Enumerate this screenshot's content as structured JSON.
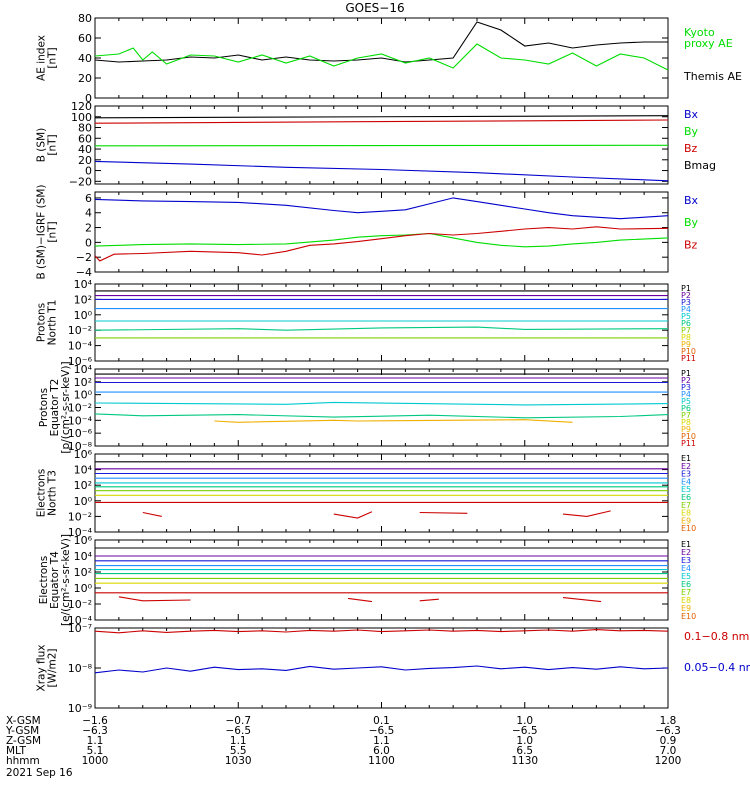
{
  "title": "GOES−16",
  "date": "2021 Sep 16",
  "ephemeris": {
    "row_labels": [
      "X-GSM",
      "Y-GSM",
      "Z-GSM",
      "MLT",
      "hhmm"
    ],
    "columns": [
      [
        "−1.6",
        "−6.3",
        "1.1",
        "5.1",
        "1000"
      ],
      [
        "−0.7",
        "−6.5",
        "1.1",
        "5.5",
        "1030"
      ],
      [
        "0.1",
        "−6.5",
        "1.1",
        "6.0",
        "1100"
      ],
      [
        "1.0",
        "−6.5",
        "1.0",
        "6.5",
        "1130"
      ],
      [
        "1.8",
        "−6.3",
        "0.9",
        "7.0",
        "1200"
      ]
    ]
  },
  "colors": {
    "black": "#000000",
    "green": "#00dd00",
    "blue": "#0000cc",
    "red": "#cc0000",
    "p_colors": [
      "#000000",
      "#6a00a0",
      "#1a1ad8",
      "#1e90ff",
      "#00c8d0",
      "#00c880",
      "#80d000",
      "#d8d800",
      "#f0b000",
      "#e06000",
      "#cc0000"
    ]
  },
  "chart_data": [
    {
      "type": "line",
      "ylabel": [
        "AE index",
        "[nT]"
      ],
      "ylim": [
        0,
        80
      ],
      "yticks": [
        "0",
        "20",
        "40",
        "60",
        "80"
      ],
      "legend": [
        {
          "label": "Kyoto",
          "color": "green"
        },
        {
          "label": "proxy AE",
          "color": "green"
        },
        {
          "label": "Themis AE",
          "color": "black"
        }
      ],
      "series": [
        {
          "color": "black",
          "x": [
            0,
            5,
            10,
            15,
            20,
            25,
            30,
            35,
            40,
            45,
            50,
            55,
            60,
            65,
            70,
            75,
            80,
            85,
            90,
            95,
            100,
            105,
            110,
            115,
            120
          ],
          "values": [
            38,
            36,
            37,
            38,
            41,
            40,
            43,
            38,
            41,
            38,
            37,
            38,
            40,
            36,
            38,
            40,
            76,
            68,
            52,
            55,
            50,
            53,
            55,
            56,
            56
          ]
        },
        {
          "color": "green",
          "x": [
            0,
            5,
            8,
            10,
            12,
            15,
            20,
            25,
            30,
            35,
            40,
            45,
            50,
            55,
            60,
            65,
            70,
            75,
            80,
            85,
            90,
            95,
            100,
            105,
            110,
            115,
            120
          ],
          "values": [
            42,
            44,
            50,
            38,
            46,
            34,
            43,
            42,
            36,
            43,
            35,
            42,
            32,
            40,
            44,
            35,
            40,
            30,
            54,
            40,
            38,
            34,
            45,
            32,
            44,
            40,
            28
          ]
        }
      ]
    },
    {
      "type": "line",
      "ylabel": [
        "B (SM)",
        "[nT]"
      ],
      "ylim": [
        -25,
        120
      ],
      "yticks": [
        "−20",
        "0",
        "20",
        "40",
        "60",
        "80",
        "100",
        "120"
      ],
      "legend": [
        {
          "label": "Bx",
          "color": "blue"
        },
        {
          "label": "By",
          "color": "green"
        },
        {
          "label": "Bz",
          "color": "red"
        },
        {
          "label": "Bmag",
          "color": "black"
        }
      ],
      "series": [
        {
          "color": "black",
          "x": [
            0,
            120
          ],
          "values": [
            98,
            102
          ]
        },
        {
          "color": "red",
          "x": [
            0,
            120
          ],
          "values": [
            88,
            94
          ]
        },
        {
          "color": "green",
          "x": [
            0,
            120
          ],
          "values": [
            46,
            47
          ]
        },
        {
          "color": "blue",
          "x": [
            0,
            20,
            40,
            60,
            80,
            100,
            120
          ],
          "values": [
            17,
            12,
            6,
            2,
            -4,
            -12,
            -19
          ]
        }
      ]
    },
    {
      "type": "line",
      "ylabel": [
        "B (SM)−IGRF (SM)",
        "[nT]"
      ],
      "ylim": [
        -4,
        6.8
      ],
      "yticks": [
        "−4",
        "−2",
        "0",
        "2",
        "4",
        "6"
      ],
      "legend": [
        {
          "label": "Bx",
          "color": "blue"
        },
        {
          "label": "By",
          "color": "green"
        },
        {
          "label": "Bz",
          "color": "red"
        }
      ],
      "series": [
        {
          "color": "blue",
          "x": [
            0,
            10,
            20,
            30,
            40,
            50,
            55,
            60,
            65,
            70,
            75,
            80,
            85,
            90,
            95,
            100,
            105,
            110,
            120
          ],
          "values": [
            5.8,
            5.6,
            5.5,
            5.4,
            5.0,
            4.3,
            4.0,
            4.2,
            4.4,
            5.2,
            6.0,
            5.5,
            5.0,
            4.5,
            4.0,
            3.6,
            3.4,
            3.2,
            3.6
          ]
        },
        {
          "color": "green",
          "x": [
            0,
            10,
            20,
            30,
            40,
            50,
            55,
            60,
            65,
            70,
            75,
            80,
            85,
            90,
            95,
            100,
            105,
            110,
            120
          ],
          "values": [
            -0.5,
            -0.3,
            -0.2,
            -0.3,
            -0.2,
            0.3,
            0.7,
            0.9,
            1.0,
            1.2,
            0.6,
            0.0,
            -0.4,
            -0.6,
            -0.5,
            -0.2,
            0.0,
            0.3,
            0.6
          ]
        },
        {
          "color": "red",
          "x": [
            0,
            1,
            4,
            10,
            20,
            30,
            35,
            40,
            45,
            50,
            55,
            60,
            65,
            70,
            75,
            80,
            85,
            90,
            95,
            100,
            105,
            110,
            120
          ],
          "values": [
            -1.8,
            -2.5,
            -1.6,
            -1.5,
            -1.2,
            -1.4,
            -1.7,
            -1.2,
            -0.4,
            -0.2,
            0.1,
            0.5,
            0.9,
            1.2,
            1.0,
            1.2,
            1.5,
            1.8,
            2.0,
            1.8,
            2.1,
            1.8,
            1.9
          ]
        }
      ]
    },
    {
      "type": "line",
      "log": true,
      "ylabel": [
        "Protons",
        "North T1"
      ],
      "ylim": [
        -6,
        4
      ],
      "yticks": [
        "10⁴",
        "10²",
        "10⁰",
        "10⁻²",
        "10⁻⁴",
        "10⁻⁶"
      ],
      "legend_labels": [
        "P1",
        "P2",
        "P3",
        "P4",
        "P5",
        "P6",
        "P7",
        "P8",
        "P9",
        "P10",
        "P11"
      ],
      "series": [
        {
          "cidx": 0,
          "x": [
            0,
            120
          ],
          "values": [
            3.1,
            3.1
          ]
        },
        {
          "cidx": 1,
          "x": [
            0,
            120
          ],
          "values": [
            2.5,
            2.5
          ]
        },
        {
          "cidx": 2,
          "x": [
            0,
            120
          ],
          "values": [
            2.0,
            2.0
          ]
        },
        {
          "cidx": 3,
          "x": [
            0,
            120
          ],
          "values": [
            0.8,
            0.8
          ]
        },
        {
          "cidx": 4,
          "x": [
            0,
            120
          ],
          "values": [
            -0.8,
            -0.8
          ]
        },
        {
          "cidx": 5,
          "x": [
            0,
            30,
            40,
            60,
            80,
            90,
            120
          ],
          "values": [
            -2.0,
            -1.8,
            -2.0,
            -1.7,
            -1.6,
            -1.9,
            -1.8
          ]
        },
        {
          "cidx": 6,
          "x": [
            0,
            5,
            20,
            45,
            70,
            95,
            120
          ],
          "values": [
            -3.0,
            -3.0,
            -3.0,
            -3.0,
            -3.0,
            -3.0,
            -3.0
          ]
        }
      ]
    },
    {
      "type": "line",
      "log": true,
      "ylabel": [
        "Protons",
        "Equator T2",
        "[p/(cm²-s-sr-keV)]"
      ],
      "ylim": [
        -8,
        4
      ],
      "yticks": [
        "10⁴",
        "10²",
        "10⁰",
        "10⁻²",
        "10⁻⁴",
        "10⁻⁶",
        "10⁻⁸"
      ],
      "legend_labels": [
        "P1",
        "P2",
        "P3",
        "P4",
        "P5",
        "P6",
        "P7",
        "P8",
        "P9",
        "P10",
        "P11"
      ],
      "series": [
        {
          "cidx": 0,
          "x": [
            0,
            120
          ],
          "values": [
            3.2,
            3.2
          ]
        },
        {
          "cidx": 1,
          "x": [
            0,
            120
          ],
          "values": [
            2.6,
            2.6
          ]
        },
        {
          "cidx": 2,
          "x": [
            0,
            120
          ],
          "values": [
            1.9,
            1.9
          ]
        },
        {
          "cidx": 3,
          "x": [
            0,
            120
          ],
          "values": [
            0.4,
            0.4
          ]
        },
        {
          "cidx": 4,
          "x": [
            0,
            40,
            50,
            90,
            120
          ],
          "values": [
            -1.3,
            -1.5,
            -1.2,
            -1.6,
            -1.4
          ]
        },
        {
          "cidx": 5,
          "x": [
            0,
            10,
            30,
            50,
            70,
            90,
            110,
            120
          ],
          "values": [
            -3.0,
            -3.3,
            -3.1,
            -3.5,
            -3.2,
            -3.6,
            -3.4,
            -3.1
          ]
        },
        {
          "cidx": 8,
          "x": [
            25,
            30,
            50,
            55,
            90,
            100
          ],
          "values": [
            -4.1,
            -4.3,
            -4.0,
            -4.1,
            -3.9,
            -4.3
          ]
        }
      ]
    },
    {
      "type": "line",
      "log": true,
      "ylabel": [
        "Electrons",
        "North T3"
      ],
      "ylim": [
        -4,
        6
      ],
      "yticks": [
        "10⁶",
        "10⁴",
        "10²",
        "10⁰",
        "10⁻²",
        "10⁻⁴"
      ],
      "legend_labels": [
        "E1",
        "E2",
        "E3",
        "E4",
        "E5",
        "E6",
        "E7",
        "E8",
        "E9",
        "E10"
      ],
      "series": [
        {
          "cidx": 0,
          "x": [
            0,
            120
          ],
          "values": [
            5.0,
            5.0
          ]
        },
        {
          "cidx": 1,
          "x": [
            0,
            120
          ],
          "values": [
            4.1,
            4.1
          ]
        },
        {
          "cidx": 2,
          "x": [
            0,
            120
          ],
          "values": [
            3.5,
            3.5
          ]
        },
        {
          "cidx": 3,
          "x": [
            0,
            120
          ],
          "values": [
            2.9,
            2.9
          ]
        },
        {
          "cidx": 4,
          "x": [
            0,
            120
          ],
          "values": [
            2.3,
            2.3
          ]
        },
        {
          "cidx": 5,
          "x": [
            0,
            120
          ],
          "values": [
            1.8,
            1.8
          ]
        },
        {
          "cidx": 6,
          "x": [
            0,
            120
          ],
          "values": [
            1.3,
            1.3
          ]
        },
        {
          "cidx": 7,
          "x": [
            0,
            120
          ],
          "values": [
            0.7,
            0.7
          ]
        },
        {
          "cidx": 10,
          "x": [
            0,
            120
          ],
          "values": [
            -0.2,
            -0.2
          ]
        },
        {
          "cidx": 10,
          "x": [
            10,
            14
          ],
          "values": [
            -1.5,
            -2.0
          ]
        },
        {
          "cidx": 10,
          "x": [
            50,
            55,
            58
          ],
          "values": [
            -1.7,
            -2.2,
            -1.4
          ]
        },
        {
          "cidx": 10,
          "x": [
            68,
            78
          ],
          "values": [
            -1.5,
            -1.6
          ]
        },
        {
          "cidx": 10,
          "x": [
            98,
            103,
            108
          ],
          "values": [
            -1.7,
            -2.0,
            -1.3
          ]
        }
      ]
    },
    {
      "type": "line",
      "log": true,
      "ylabel": [
        "Electrons",
        "Equator T4",
        "[e/(cm²-s-sr-keV)]"
      ],
      "ylim": [
        -4,
        6
      ],
      "yticks": [
        "10⁶",
        "10⁴",
        "10²",
        "10⁰",
        "10⁻²",
        "10⁻⁴"
      ],
      "legend_labels": [
        "E1",
        "E2",
        "E3",
        "E4",
        "E5",
        "E6",
        "E7",
        "E8",
        "E9",
        "E10"
      ],
      "series": [
        {
          "cidx": 0,
          "x": [
            0,
            120
          ],
          "values": [
            5.0,
            5.0
          ]
        },
        {
          "cidx": 1,
          "x": [
            0,
            120
          ],
          "values": [
            4.0,
            4.0
          ]
        },
        {
          "cidx": 2,
          "x": [
            0,
            120
          ],
          "values": [
            3.4,
            3.4
          ]
        },
        {
          "cidx": 3,
          "x": [
            0,
            120
          ],
          "values": [
            2.8,
            2.8
          ]
        },
        {
          "cidx": 4,
          "x": [
            0,
            120
          ],
          "values": [
            2.3,
            2.3
          ]
        },
        {
          "cidx": 5,
          "x": [
            0,
            120
          ],
          "values": [
            1.8,
            1.8
          ]
        },
        {
          "cidx": 6,
          "x": [
            0,
            120
          ],
          "values": [
            1.2,
            1.2
          ]
        },
        {
          "cidx": 7,
          "x": [
            0,
            120
          ],
          "values": [
            0.6,
            0.6
          ]
        },
        {
          "cidx": 10,
          "x": [
            0,
            120
          ],
          "values": [
            -0.6,
            -0.6
          ]
        },
        {
          "cidx": 10,
          "x": [
            5,
            10,
            20
          ],
          "values": [
            -1.1,
            -1.6,
            -1.5
          ]
        },
        {
          "cidx": 10,
          "x": [
            53,
            58
          ],
          "values": [
            -1.3,
            -1.7
          ]
        },
        {
          "cidx": 10,
          "x": [
            68,
            72
          ],
          "values": [
            -1.6,
            -1.4
          ]
        },
        {
          "cidx": 10,
          "x": [
            98,
            106
          ],
          "values": [
            -1.2,
            -1.7
          ]
        }
      ]
    },
    {
      "type": "line",
      "log": true,
      "ylabel": [
        "Xray flux",
        "[W/m2]"
      ],
      "ylim": [
        -9,
        -7
      ],
      "yticks": [
        "10⁻⁷",
        "10⁻⁸",
        "10⁻⁹"
      ],
      "legend": [
        {
          "label": "0.1−0.8 nm",
          "color": "red"
        },
        {
          "label": "0.05−0.4 nm",
          "color": "blue"
        }
      ],
      "series": [
        {
          "color": "red",
          "x": [
            0,
            5,
            10,
            15,
            20,
            25,
            30,
            35,
            40,
            45,
            50,
            55,
            60,
            65,
            70,
            75,
            80,
            85,
            90,
            95,
            100,
            105,
            110,
            115,
            120
          ],
          "values": [
            -7.08,
            -7.12,
            -7.07,
            -7.11,
            -7.08,
            -7.06,
            -7.09,
            -7.07,
            -7.1,
            -7.06,
            -7.08,
            -7.05,
            -7.09,
            -7.07,
            -7.05,
            -7.08,
            -7.06,
            -7.09,
            -7.07,
            -7.05,
            -7.08,
            -7.04,
            -7.07,
            -7.06,
            -7.08
          ]
        },
        {
          "color": "blue",
          "x": [
            0,
            5,
            10,
            15,
            20,
            25,
            30,
            35,
            40,
            45,
            50,
            55,
            60,
            65,
            70,
            75,
            80,
            85,
            90,
            95,
            100,
            105,
            110,
            115,
            120
          ],
          "values": [
            -8.12,
            -8.05,
            -8.1,
            -8.0,
            -8.08,
            -7.98,
            -8.04,
            -8.02,
            -8.06,
            -7.96,
            -8.03,
            -8.0,
            -7.97,
            -8.05,
            -8.01,
            -7.99,
            -7.95,
            -8.02,
            -7.98,
            -8.04,
            -7.99,
            -8.03,
            -7.97,
            -8.02,
            -8.0
          ]
        }
      ]
    }
  ]
}
